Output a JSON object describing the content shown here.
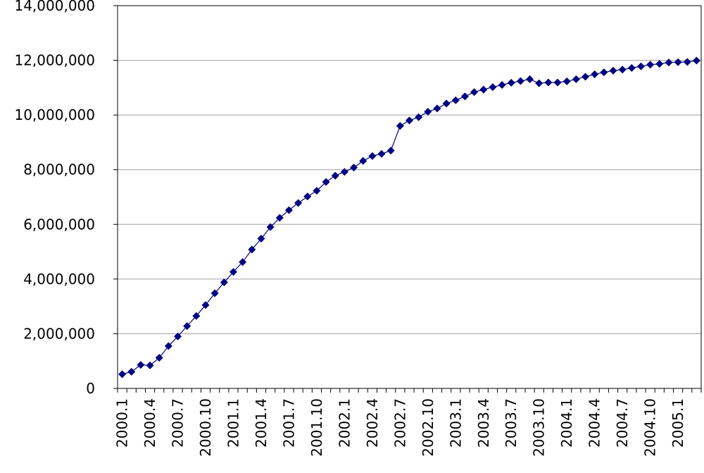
{
  "chart_data": {
    "type": "line",
    "title": "",
    "xlabel": "",
    "ylabel": "",
    "ylim": [
      0,
      14000000
    ],
    "grid": true,
    "legend": "none",
    "y_ticks": [
      {
        "value": 0,
        "label": "0"
      },
      {
        "value": 2000000,
        "label": "2,000,000"
      },
      {
        "value": 4000000,
        "label": "4,000,000"
      },
      {
        "value": 6000000,
        "label": "6,000,000"
      },
      {
        "value": 8000000,
        "label": "8,000,000"
      },
      {
        "value": 10000000,
        "label": "10,000,000"
      },
      {
        "value": 12000000,
        "label": "12,000,000"
      },
      {
        "value": 14000000,
        "label": "14,000,000"
      }
    ],
    "categories": [
      "2000.1",
      "2000.2",
      "2000.3",
      "2000.4",
      "2000.5",
      "2000.6",
      "2000.7",
      "2000.8",
      "2000.9",
      "2000.10",
      "2000.11",
      "2000.12",
      "2001.1",
      "2001.2",
      "2001.3",
      "2001.4",
      "2001.5",
      "2001.6",
      "2001.7",
      "2001.8",
      "2001.9",
      "2001.10",
      "2001.11",
      "2001.12",
      "2002.1",
      "2002.2",
      "2002.3",
      "2002.4",
      "2002.5",
      "2002.6",
      "2002.7",
      "2002.8",
      "2002.9",
      "2002.10",
      "2002.11",
      "2002.12",
      "2003.1",
      "2003.2",
      "2003.3",
      "2003.4",
      "2003.5",
      "2003.6",
      "2003.7",
      "2003.8",
      "2003.9",
      "2003.10",
      "2003.11",
      "2003.12",
      "2004.1",
      "2004.2",
      "2004.3",
      "2004.4",
      "2004.5",
      "2004.6",
      "2004.7",
      "2004.8",
      "2004.9",
      "2004.10",
      "2004.11",
      "2004.12",
      "2005.1",
      "2005.2",
      "2005.3"
    ],
    "x_tick_labels": [
      "2000.1",
      "2000.4",
      "2000.7",
      "2000.10",
      "2001.1",
      "2001.4",
      "2001.7",
      "2001.10",
      "2002.1",
      "2002.4",
      "2002.7",
      "2002.10",
      "2003.1",
      "2003.4",
      "2003.7",
      "2003.10",
      "2004.1",
      "2004.4",
      "2004.7",
      "2004.10",
      "2005.1"
    ],
    "series": [
      {
        "color": "#000080",
        "marker": "diamond",
        "values": [
          520000,
          610000,
          860000,
          840000,
          1120000,
          1550000,
          1900000,
          2280000,
          2650000,
          3050000,
          3480000,
          3880000,
          4260000,
          4620000,
          5080000,
          5480000,
          5900000,
          6240000,
          6520000,
          6780000,
          7020000,
          7230000,
          7550000,
          7780000,
          7920000,
          8080000,
          8320000,
          8500000,
          8580000,
          8700000,
          9600000,
          9800000,
          9920000,
          10120000,
          10240000,
          10420000,
          10540000,
          10680000,
          10840000,
          10930000,
          11020000,
          11100000,
          11180000,
          11240000,
          11310000,
          11160000,
          11190000,
          11190000,
          11230000,
          11310000,
          11400000,
          11490000,
          11560000,
          11620000,
          11660000,
          11720000,
          11780000,
          11840000,
          11870000,
          11920000,
          11930000,
          11940000,
          11990000
        ]
      }
    ]
  }
}
